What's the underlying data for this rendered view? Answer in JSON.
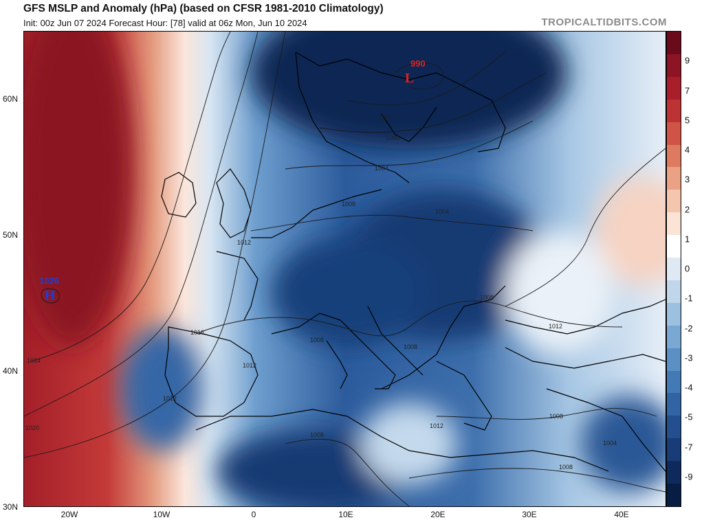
{
  "header": {
    "title": "GFS MSLP and Anomaly (hPa) (based on CFSR 1981-2010 Climatology)",
    "subtitle": "Init: 00z Jun 07 2024   Forecast Hour: [78]   valid at 06z Mon, Jun 10 2024",
    "watermark": "TROPICALTIDBITS.COM"
  },
  "map": {
    "lat_labels": [
      "60N",
      "50N",
      "40N",
      "30N"
    ],
    "lon_labels": [
      "20W",
      "10W",
      "0",
      "10E",
      "20E",
      "30E",
      "40E"
    ],
    "pressure_centers": [
      {
        "type": "L",
        "value": "990",
        "color": "#e02020"
      },
      {
        "type": "H",
        "value": "1026",
        "color": "#1a3fd6"
      }
    ],
    "isobar_labels": [
      "1024",
      "1020",
      "1016",
      "1012",
      "1012",
      "1012",
      "1012",
      "1012",
      "1008",
      "1008",
      "1008",
      "1008",
      "1008",
      "1008",
      "1008",
      "1004",
      "1004",
      "1004",
      "1000",
      "996"
    ]
  },
  "colorbar": {
    "ticks": [
      "9",
      "7",
      "5",
      "4",
      "3",
      "2",
      "1",
      "0",
      "-1",
      "-2",
      "-3",
      "-4",
      "-5",
      "-7",
      "-9"
    ],
    "colors": [
      "#6a0a1a",
      "#8c1424",
      "#a81e2a",
      "#bd3334",
      "#cf5446",
      "#de7a60",
      "#eaa184",
      "#f4c6ae",
      "#fbe3d6",
      "#ffffff",
      "#dfe9f3",
      "#c0d6ea",
      "#9cc0df",
      "#79a8d2",
      "#5a90c4",
      "#4379b4",
      "#3263a2",
      "#244f8e",
      "#183c77",
      "#0e2a5c",
      "#081d44"
    ]
  }
}
